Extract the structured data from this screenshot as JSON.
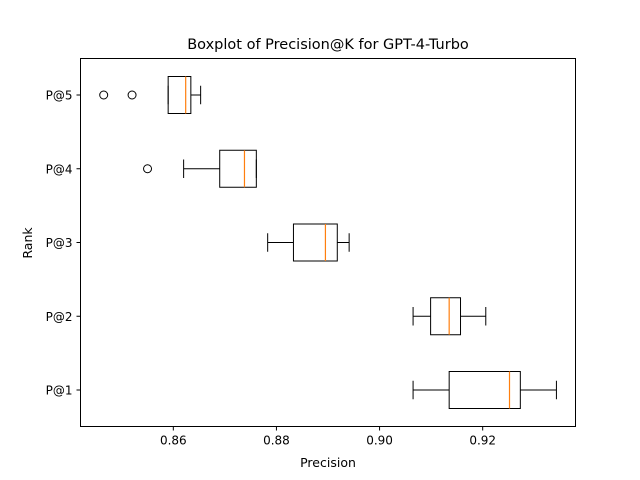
{
  "chart_data": {
    "type": "boxplot",
    "orientation": "horizontal",
    "title": "Boxplot of Precision@K for GPT-4-Turbo",
    "xlabel": "Precision",
    "ylabel": "Rank",
    "xlim": [
      0.842,
      0.938
    ],
    "x_ticks": [
      0.86,
      0.88,
      0.9,
      0.92
    ],
    "x_tick_labels": [
      "0.86",
      "0.88",
      "0.90",
      "0.92"
    ],
    "grid": false,
    "colors": {
      "box_edge": "#000000",
      "median": "#ff7f0e",
      "outlier_edge": "#000000"
    },
    "categories": [
      "P@1",
      "P@2",
      "P@3",
      "P@4",
      "P@5"
    ],
    "boxes": [
      {
        "label": "P@1",
        "whisker_low": 0.9065,
        "q1": 0.9135,
        "median": 0.9252,
        "q3": 0.9273,
        "whisker_high": 0.9343,
        "outliers": []
      },
      {
        "label": "P@2",
        "whisker_low": 0.9065,
        "q1": 0.9099,
        "median": 0.9135,
        "q3": 0.9157,
        "whisker_high": 0.9206,
        "outliers": []
      },
      {
        "label": "P@3",
        "whisker_low": 0.8783,
        "q1": 0.8833,
        "median": 0.8895,
        "q3": 0.8918,
        "whisker_high": 0.8941,
        "outliers": []
      },
      {
        "label": "P@4",
        "whisker_low": 0.862,
        "q1": 0.869,
        "median": 0.8738,
        "q3": 0.8761,
        "whisker_high": 0.8761,
        "outliers": [
          0.855
        ]
      },
      {
        "label": "P@5",
        "whisker_low": 0.859,
        "q1": 0.859,
        "median": 0.8624,
        "q3": 0.8634,
        "whisker_high": 0.8653,
        "outliers": [
          0.8465,
          0.852
        ]
      }
    ]
  }
}
